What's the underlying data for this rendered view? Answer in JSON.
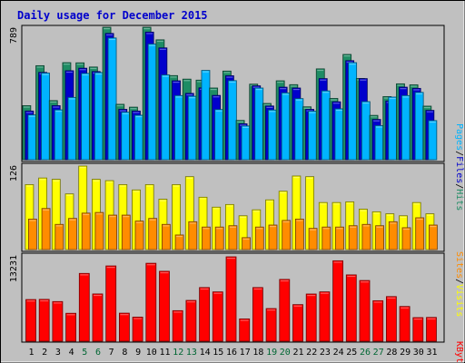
{
  "title": "Daily usage for December 2015",
  "colors": {
    "hits": "#1e8c64",
    "files": "#0000cc",
    "pages": "#00b4ff",
    "visits": "#ffff00",
    "sites": "#ff8c00",
    "kbytes": "#ff0000",
    "weekend_label": "#006633",
    "weekday_label": "#000000",
    "title": "#0000cc",
    "background": "#c0c0c0"
  },
  "chart_data": [
    {
      "type": "bar",
      "name": "hits-files-pages",
      "categories": [
        "1",
        "2",
        "3",
        "4",
        "5",
        "6",
        "7",
        "8",
        "9",
        "10",
        "11",
        "12",
        "13",
        "14",
        "15",
        "16",
        "17",
        "18",
        "19",
        "20",
        "21",
        "22",
        "23",
        "24",
        "25",
        "26",
        "27",
        "28",
        "29",
        "30",
        "31"
      ],
      "max_label": "789",
      "ylim": [
        0,
        789
      ],
      "series": [
        {
          "name": "Hits",
          "values": [
            322,
            560,
            352,
            578,
            577,
            552,
            789,
            330,
            313,
            789,
            714,
            501,
            480,
            474,
            427,
            528,
            234,
            450,
            335,
            470,
            447,
            315,
            541,
            365,
            627,
            484,
            264,
            376,
            452,
            446,
            319
          ]
        },
        {
          "name": "Files",
          "values": [
            290,
            520,
            322,
            530,
            545,
            525,
            752,
            300,
            290,
            760,
            666,
            470,
            395,
            428,
            383,
            500,
            214,
            440,
            320,
            432,
            427,
            300,
            483,
            345,
            590,
            483,
            240,
            350,
            432,
            425,
            294
          ]
        },
        {
          "name": "Pages",
          "values": [
            267,
            516,
            297,
            371,
            514,
            519,
            725,
            283,
            265,
            689,
            505,
            382,
            378,
            532,
            299,
            471,
            201,
            427,
            296,
            398,
            364,
            289,
            410,
            303,
            578,
            346,
            203,
            373,
            382,
            401,
            233
          ]
        }
      ],
      "legend": [
        "Pages",
        "Files",
        "Hits"
      ]
    },
    {
      "type": "bar",
      "name": "visits-sites",
      "max_label": "126",
      "ylim": [
        0,
        126
      ],
      "series": [
        {
          "name": "Visits",
          "values": [
            98,
            108,
            106,
            84,
            126,
            106,
            104,
            98,
            90,
            98,
            76,
            98,
            110,
            79,
            64,
            68,
            51,
            60,
            75,
            88,
            111,
            110,
            71,
            71,
            72,
            61,
            57,
            54,
            51,
            71,
            54
          ]
        },
        {
          "name": "Sites",
          "values": [
            46,
            62,
            38,
            47,
            55,
            56,
            52,
            52,
            43,
            47,
            38,
            22,
            42,
            34,
            34,
            36,
            18,
            34,
            37,
            44,
            46,
            32,
            34,
            34,
            36,
            38,
            36,
            42,
            33,
            48,
            37
          ]
        }
      ],
      "legend": [
        "Sites",
        "Visits"
      ]
    },
    {
      "type": "bar",
      "name": "kbytes",
      "max_label": "13231",
      "ylim": [
        0,
        13231
      ],
      "series": [
        {
          "name": "KBytes",
          "values": [
            6533,
            6560,
            6218,
            4380,
            10630,
            7411,
            11803,
            4400,
            3780,
            12220,
            10964,
            4790,
            6400,
            8415,
            7734,
            13231,
            3500,
            8415,
            5120,
            9690,
            5740,
            7400,
            7740,
            12610,
            10400,
            9520,
            6350,
            7000,
            5450,
            3700,
            3730
          ]
        }
      ],
      "legend": [
        "KBytes"
      ]
    }
  ],
  "weekend_days": [
    5,
    6,
    12,
    13,
    19,
    20,
    26,
    27
  ]
}
